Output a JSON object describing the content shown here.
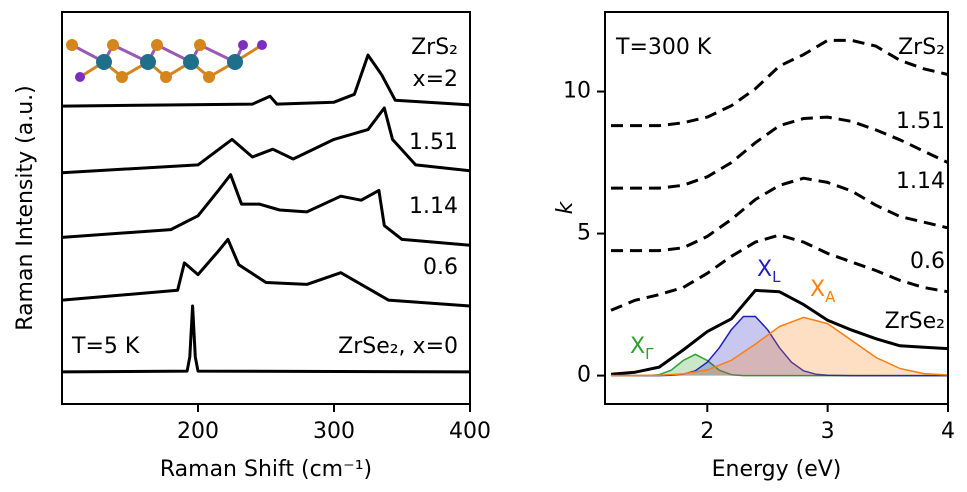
{
  "chart_data": [
    {
      "type": "line",
      "xlabel": "Raman Shift (cm⁻¹)",
      "ylabel": "Raman Intensity (a.u.)",
      "xlim": [
        100,
        400
      ],
      "ylim": [
        0,
        10
      ],
      "xticks": [
        200,
        300,
        400
      ],
      "series": [
        {
          "color": "#000000",
          "x": [
            100,
            192,
            194,
            196,
            198,
            200,
            400
          ],
          "values": [
            0.82,
            0.84,
            1.2,
            2.5,
            1.2,
            0.84,
            0.82
          ]
        },
        {
          "color": "#000000",
          "x": [
            100,
            185,
            190,
            200,
            215,
            222,
            230,
            250,
            280,
            305,
            320,
            340,
            400
          ],
          "values": [
            2.65,
            2.9,
            3.6,
            3.3,
            3.9,
            4.2,
            3.55,
            3.1,
            3.05,
            3.35,
            3.05,
            2.65,
            2.5
          ]
        },
        {
          "color": "#000000",
          "x": [
            100,
            180,
            200,
            215,
            224,
            232,
            245,
            260,
            280,
            305,
            320,
            333,
            337,
            350,
            400
          ],
          "values": [
            4.25,
            4.45,
            4.8,
            5.45,
            5.85,
            5.1,
            5.1,
            4.95,
            4.9,
            5.3,
            5.2,
            5.45,
            4.55,
            4.2,
            4.05
          ]
        },
        {
          "color": "#000000",
          "x": [
            100,
            200,
            225,
            240,
            255,
            270,
            300,
            325,
            337,
            343,
            360,
            400
          ],
          "values": [
            5.9,
            6.1,
            6.75,
            6.3,
            6.5,
            6.25,
            6.75,
            7.0,
            7.55,
            6.75,
            6.1,
            5.95
          ]
        },
        {
          "color": "#000000",
          "x": [
            100,
            240,
            253,
            258,
            300,
            315,
            325,
            335,
            345,
            400
          ],
          "values": [
            7.6,
            7.65,
            7.85,
            7.65,
            7.7,
            7.9,
            8.9,
            8.4,
            7.75,
            7.63
          ]
        }
      ],
      "annotations": [
        {
          "text": "ZrS₂"
        },
        {
          "text": "x=2"
        },
        {
          "text": "1.51"
        },
        {
          "text": "1.14"
        },
        {
          "text": "0.6"
        },
        {
          "text": "T=5 K"
        },
        {
          "text": "ZrSe₂, x=0"
        }
      ]
    },
    {
      "type": "line",
      "xlabel": "Energy (eV)",
      "ylabel": "k",
      "xlim": [
        1.15,
        4
      ],
      "ylim": [
        -1,
        12.8
      ],
      "xticks": [
        2,
        3,
        4
      ],
      "yticks": [
        0,
        5,
        10
      ],
      "series": [
        {
          "color": "#000000",
          "dash": true,
          "x": [
            1.2,
            1.4,
            1.6,
            1.8,
            2.0,
            2.2,
            2.4,
            2.6,
            2.8,
            3.0,
            3.2,
            3.4,
            3.6,
            3.8,
            4.0
          ],
          "values": [
            8.8,
            8.8,
            8.8,
            8.9,
            9.1,
            9.5,
            10.1,
            10.9,
            11.3,
            11.8,
            11.8,
            11.6,
            11.1,
            10.8,
            10.6
          ]
        },
        {
          "color": "#000000",
          "dash": true,
          "x": [
            1.2,
            1.4,
            1.6,
            1.8,
            2.0,
            2.2,
            2.4,
            2.6,
            2.8,
            3.0,
            3.2,
            3.4,
            3.6,
            3.8,
            4.0
          ],
          "values": [
            6.6,
            6.6,
            6.6,
            6.7,
            7.0,
            7.5,
            8.2,
            8.8,
            9.05,
            9.1,
            8.95,
            8.65,
            8.3,
            7.9,
            7.5
          ]
        },
        {
          "color": "#000000",
          "dash": true,
          "x": [
            1.2,
            1.4,
            1.6,
            1.8,
            2.0,
            2.2,
            2.4,
            2.6,
            2.8,
            3.0,
            3.2,
            3.4,
            3.6,
            3.8,
            4.0
          ],
          "values": [
            4.4,
            4.4,
            4.4,
            4.5,
            4.9,
            5.5,
            6.2,
            6.7,
            6.95,
            6.8,
            6.5,
            6.0,
            5.6,
            5.4,
            5.2
          ]
        },
        {
          "color": "#000000",
          "dash": true,
          "x": [
            1.2,
            1.4,
            1.6,
            1.8,
            2.0,
            2.2,
            2.4,
            2.6,
            2.8,
            3.0,
            3.2,
            3.4,
            3.6,
            3.8,
            4.0
          ],
          "values": [
            2.3,
            2.65,
            2.85,
            3.1,
            3.6,
            4.2,
            4.7,
            4.95,
            4.7,
            4.3,
            4.0,
            3.7,
            3.35,
            3.1,
            2.95
          ]
        },
        {
          "color": "#000000",
          "x": [
            1.2,
            1.4,
            1.6,
            1.8,
            2.0,
            2.2,
            2.4,
            2.6,
            2.8,
            3.0,
            3.2,
            3.4,
            3.6,
            3.8,
            4.0
          ],
          "values": [
            0.05,
            0.12,
            0.3,
            0.9,
            1.55,
            2.0,
            3.0,
            2.95,
            2.5,
            1.95,
            1.6,
            1.3,
            1.05,
            1.0,
            0.95
          ]
        },
        {
          "color": "#2ca02c",
          "fill": true,
          "x": [
            1.2,
            1.3,
            1.4,
            1.5,
            1.6,
            1.7,
            1.8,
            1.9,
            2.0,
            2.1,
            2.2,
            2.3,
            2.4,
            3.0,
            4.0
          ],
          "values": [
            0,
            0,
            0,
            0,
            0.03,
            0.19,
            0.53,
            0.75,
            0.53,
            0.19,
            0.03,
            0,
            0,
            0,
            0
          ]
        },
        {
          "color": "#1f1fbf",
          "fill": true,
          "x": [
            1.2,
            1.5,
            1.6,
            1.7,
            1.8,
            1.9,
            2.0,
            2.1,
            2.2,
            2.3,
            2.4,
            2.5,
            2.6,
            2.7,
            2.8,
            2.9,
            3.0,
            3.2,
            4.0
          ],
          "values": [
            0,
            0,
            0,
            0.01,
            0.05,
            0.17,
            0.47,
            0.98,
            1.62,
            2.08,
            2.08,
            1.62,
            0.98,
            0.47,
            0.17,
            0.05,
            0.01,
            0,
            0
          ]
        },
        {
          "color": "#ff7f0e",
          "fill": true,
          "x": [
            1.2,
            1.4,
            1.6,
            1.8,
            2.0,
            2.2,
            2.4,
            2.6,
            2.8,
            3.0,
            3.2,
            3.4,
            3.6,
            3.8,
            4.0
          ],
          "values": [
            0,
            0,
            0.01,
            0.06,
            0.2,
            0.54,
            1.11,
            1.73,
            2.05,
            1.83,
            1.24,
            0.64,
            0.25,
            0.07,
            0.02
          ]
        }
      ],
      "annotations": [
        {
          "text": "T=300 K"
        },
        {
          "text": "ZrS₂"
        },
        {
          "text": "1.51"
        },
        {
          "text": "1.14"
        },
        {
          "text": "0.6"
        },
        {
          "text": "ZrSe₂"
        },
        {
          "text": "X",
          "sub": "Γ",
          "color": "#2ca02c"
        },
        {
          "text": "X",
          "sub": "L",
          "color": "#1f1fbf"
        },
        {
          "text": "X",
          "sub": "A",
          "color": "#ff7f0e"
        }
      ]
    }
  ]
}
